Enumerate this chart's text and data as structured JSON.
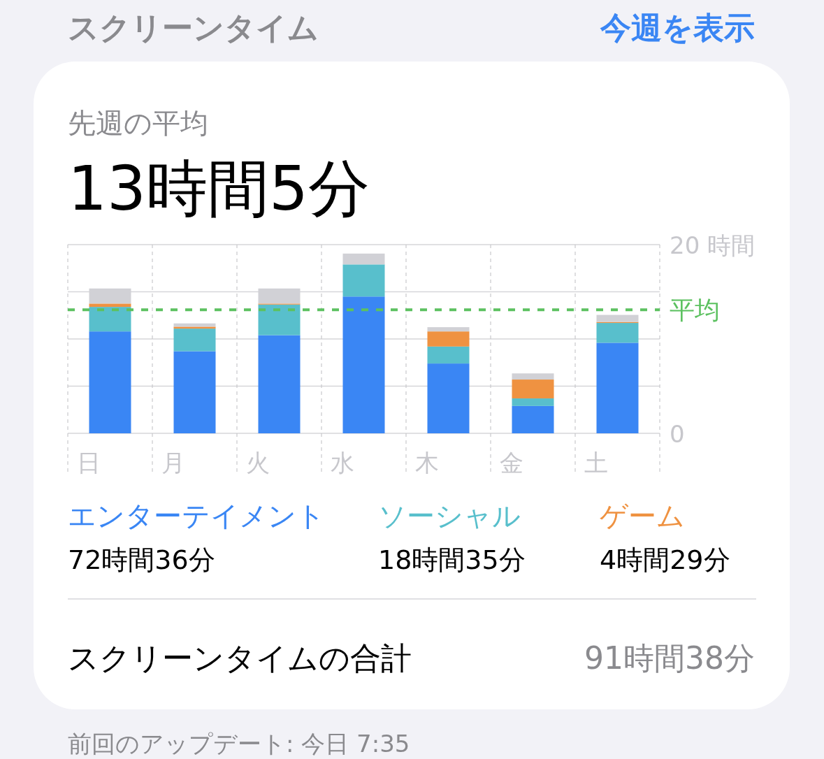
{
  "chart_data": {
    "type": "bar",
    "stacked": true,
    "title": "スクリーンタイム",
    "subtitle": "先週の平均",
    "categories": [
      "日",
      "月",
      "火",
      "水",
      "木",
      "金",
      "土"
    ],
    "series": [
      {
        "name": "エンターテイメント",
        "color": "#3a86f4",
        "values": [
          10.8,
          8.7,
          10.4,
          14.5,
          7.4,
          2.9,
          9.6
        ]
      },
      {
        "name": "ソーシャル",
        "color": "#58bfcc",
        "values": [
          2.6,
          2.4,
          3.25,
          3.4,
          1.8,
          0.8,
          2.1
        ]
      },
      {
        "name": "ゲーム",
        "color": "#ef9241",
        "values": [
          0.35,
          0.2,
          0.1,
          0,
          1.6,
          2.0,
          0.1
        ]
      },
      {
        "color": "#d1d1d6",
        "values": [
          1.6,
          0.35,
          1.6,
          1.15,
          0.45,
          0.65,
          0.75
        ]
      }
    ],
    "ylim": [
      0,
      20
    ],
    "yticks": [
      0,
      {
        "value": 5,
        "label": null
      },
      {
        "value": 10,
        "label": null
      },
      {
        "value": 15,
        "label": null
      },
      {
        "value": 20,
        "label": "20 時間"
      }
    ],
    "grid": true,
    "legend": "bottom",
    "ref_lines": [
      {
        "axis": "y",
        "value": 13.1,
        "label": "平均",
        "color": "#5cc160",
        "line_style": "dashed"
      }
    ],
    "annotations": [
      "今週を表示",
      "13時間5分",
      "72時間36分",
      "18時間35分",
      "4時間29分",
      "スクリーンタイムの合計",
      "91時間38分",
      "前回のアップデート: 今日 7:35"
    ]
  }
}
